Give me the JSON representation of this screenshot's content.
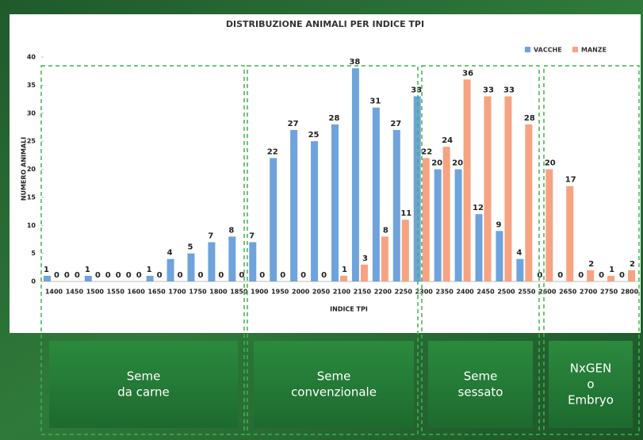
{
  "chart_data": {
    "type": "bar",
    "title": "DISTRIBUZIONE ANIMALI PER INDICE TPI",
    "x_label": "INDICE TPI",
    "y_label": "NUMERO ANIMALI",
    "categories": [
      "1400",
      "1450",
      "1500",
      "1550",
      "1600",
      "1650",
      "1700",
      "1750",
      "1800",
      "1850",
      "1900",
      "1950",
      "2000",
      "2050",
      "2100",
      "2150",
      "2200",
      "2250",
      "2300",
      "2350",
      "2400",
      "2450",
      "2500",
      "2550",
      "2600",
      "2650",
      "2700",
      "2750",
      "2800"
    ],
    "series": [
      {
        "name": "VACCHE",
        "color": "#6fa3dc",
        "values": [
          1,
          0,
          1,
          0,
          0,
          1,
          4,
          5,
          7,
          8,
          7,
          22,
          27,
          25,
          28,
          38,
          31,
          27,
          33,
          20,
          20,
          12,
          9,
          4,
          0,
          0,
          0,
          0,
          0
        ]
      },
      {
        "name": "MANZE",
        "color": "#f7a382",
        "values": [
          0,
          0,
          0,
          0,
          0,
          0,
          0,
          0,
          0,
          0,
          0,
          0,
          0,
          0,
          1,
          3,
          8,
          11,
          22,
          24,
          36,
          33,
          33,
          28,
          20,
          17,
          2,
          1,
          2
        ]
      }
    ],
    "ylim": [
      0,
      40
    ],
    "yticks": [
      0,
      5,
      10,
      15,
      20,
      25,
      30,
      35,
      40
    ],
    "legend": "top-right",
    "segments": [
      {
        "lines": [
          "Seme",
          "da carne"
        ]
      },
      {
        "lines": [
          "Seme",
          "convenzionale"
        ]
      },
      {
        "lines": [
          "Seme",
          "sessato"
        ]
      },
      {
        "lines": [
          "NxGEN",
          "o",
          "Embryo"
        ]
      }
    ]
  }
}
